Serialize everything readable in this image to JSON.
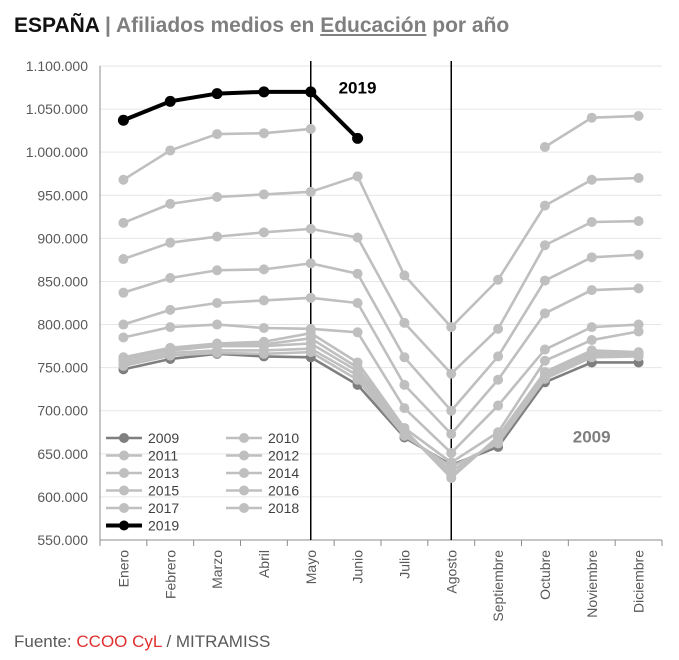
{
  "title": {
    "country": "ESPAÑA",
    "separator": "|",
    "prefix": "Afiliados medios en",
    "sector": "Educación",
    "suffix": "por año"
  },
  "source": {
    "label": "Fuente:",
    "org": "CCOO CyL",
    "rest": "/ MITRAMISS"
  },
  "colors": {
    "highlight": "#000000",
    "series_light": "#bfbfbf",
    "series_2009": "#7f7f7f",
    "source_red": "#e03030"
  },
  "chart_data": {
    "type": "line",
    "categories": [
      "Enero",
      "Febrero",
      "Marzo",
      "Abril",
      "Mayo",
      "Junio",
      "Julio",
      "Agosto",
      "Septiembre",
      "Octubre",
      "Noviembre",
      "Diciembre"
    ],
    "ylim": [
      550000,
      1100000
    ],
    "yticks": [
      550000,
      600000,
      650000,
      700000,
      750000,
      800000,
      850000,
      900000,
      950000,
      1000000,
      1050000,
      1100000
    ],
    "ytick_labels": [
      "550.000",
      "600.000",
      "650.000",
      "700.000",
      "750.000",
      "800.000",
      "850.000",
      "900.000",
      "950.000",
      "1.000.000",
      "1.050.000",
      "1.100.000"
    ],
    "grid": true,
    "legend_position": "bottom-left",
    "vertical_lines_at": [
      "Mayo",
      "Agosto"
    ],
    "annotations": [
      {
        "text": "2019",
        "at_category": "Junio",
        "y": 1075000
      },
      {
        "text": "2009",
        "at_category": "Noviembre",
        "y": 670000
      }
    ],
    "series": [
      {
        "name": "2009",
        "color": "#7f7f7f",
        "values": [
          748000,
          760000,
          766000,
          763000,
          762000,
          730000,
          669000,
          637000,
          658000,
          733000,
          756000,
          756000
        ]
      },
      {
        "name": "2010",
        "color": "#bfbfbf",
        "values": [
          752000,
          764000,
          767000,
          766000,
          768000,
          736000,
          671000,
          635000,
          662000,
          737000,
          762000,
          763000
        ]
      },
      {
        "name": "2011",
        "color": "#bfbfbf",
        "values": [
          755000,
          767000,
          770000,
          770000,
          772000,
          741000,
          674000,
          630000,
          665000,
          740000,
          765000,
          765000
        ]
      },
      {
        "name": "2012",
        "color": "#bfbfbf",
        "values": [
          758000,
          770000,
          775000,
          775000,
          778000,
          746000,
          676000,
          625000,
          668000,
          743000,
          768000,
          767000
        ]
      },
      {
        "name": "2013",
        "color": "#bfbfbf",
        "values": [
          760000,
          772000,
          776000,
          777000,
          784000,
          750000,
          678000,
          622000,
          670000,
          745000,
          770000,
          768000
        ]
      },
      {
        "name": "2014",
        "color": "#bfbfbf",
        "values": [
          762000,
          773000,
          778000,
          780000,
          790000,
          756000,
          680000,
          640000,
          675000,
          758000,
          782000,
          792000
        ]
      },
      {
        "name": "2015",
        "color": "#bfbfbf",
        "values": [
          785000,
          797000,
          800000,
          796000,
          795000,
          791000,
          703000,
          651000,
          706000,
          771000,
          797000,
          800000
        ]
      },
      {
        "name": "2016",
        "color": "#bfbfbf",
        "values": [
          800000,
          817000,
          825000,
          828000,
          831000,
          825000,
          730000,
          673000,
          736000,
          813000,
          840000,
          842000
        ]
      },
      {
        "name": "2017",
        "color": "#bfbfbf",
        "values": [
          837000,
          854000,
          863000,
          864000,
          871000,
          859000,
          762000,
          700000,
          763000,
          851000,
          878000,
          881000
        ]
      },
      {
        "name": "2018",
        "color": "#bfbfbf",
        "values": [
          876000,
          895000,
          902000,
          907000,
          911000,
          901000,
          802000,
          743000,
          795000,
          892000,
          919000,
          920000
        ]
      },
      {
        "name": "",
        "color": "#bfbfbf",
        "values": [
          918000,
          940000,
          948000,
          951000,
          954000,
          972000,
          857000,
          797000,
          852000,
          938000,
          968000,
          970000
        ]
      },
      {
        "name": "",
        "color": "#bfbfbf",
        "values": [
          968000,
          1002000,
          1021000,
          1022000,
          1027000,
          null,
          null,
          null,
          null,
          1006000,
          1040000,
          1042000
        ]
      },
      {
        "name": "2019",
        "color": "#000000",
        "values": [
          1037000,
          1059000,
          1068000,
          1070000,
          1070000,
          1016000,
          null,
          null,
          null,
          null,
          null,
          null
        ]
      }
    ]
  }
}
